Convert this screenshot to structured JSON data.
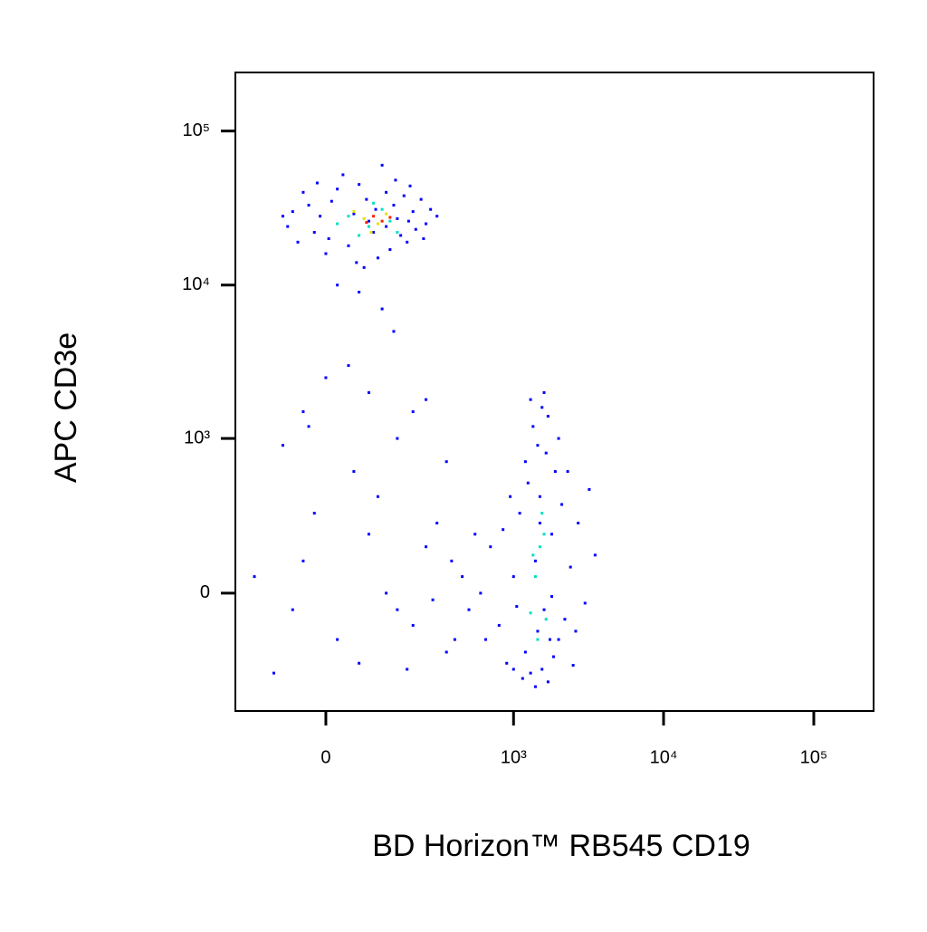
{
  "chart_data": {
    "type": "scatter",
    "x_label": "BD Horizon™ RB545 CD19",
    "y_label": "APC CD3e",
    "x_scale": "biexponential",
    "y_scale": "biexponential",
    "xlim": [
      -212,
      250000
    ],
    "ylim": [
      -565,
      240000
    ],
    "xticks": [
      0,
      {
        "value": 1000,
        "label": "10³"
      },
      {
        "value": 10000,
        "label": "10⁴"
      },
      {
        "value": 100000,
        "label": "10⁵"
      }
    ],
    "yticks": [
      0,
      {
        "value": 1000,
        "label": "10³"
      },
      {
        "value": 10000,
        "label": "10⁴"
      },
      {
        "value": 100000,
        "label": "10⁵"
      }
    ],
    "series": [
      {
        "color": "#0000ff",
        "x": [
          -60,
          -20,
          10,
          40,
          80,
          120,
          160,
          200,
          250,
          -40,
          0,
          60,
          100,
          140,
          180,
          230,
          -70,
          -10,
          30,
          70,
          110,
          150,
          190,
          270,
          -50,
          20,
          90,
          130,
          170,
          210,
          -30,
          50,
          120,
          300,
          -80,
          5,
          75,
          145,
          240,
          -15,
          55,
          95,
          185,
          60,
          110,
          20,
          140,
          40,
          80,
          -40,
          600,
          800,
          1000,
          1200,
          1400,
          1600,
          1800,
          2000,
          2400,
          3000,
          700,
          900,
          1100,
          1300,
          1500,
          1700,
          1900,
          2200,
          2700,
          3500,
          650,
          850,
          1050,
          1250,
          1450,
          1650,
          1850,
          2100,
          2500,
          1350,
          1550,
          1450,
          1700,
          1200,
          2000,
          1600,
          1300,
          1400,
          1550,
          1150,
          1750,
          950,
          2300,
          500,
          550,
          1000,
          1500,
          1800,
          2600,
          3200,
          -40,
          20,
          80,
          150,
          250,
          350,
          450,
          -100,
          -20,
          60,
          120,
          200,
          300,
          400,
          -60,
          180,
          380,
          280,
          -150,
          100,
          50,
          200,
          -80,
          0,
          250,
          350,
          150,
          -30
        ],
        "y": [
          30000,
          22000,
          35000,
          18000,
          26000,
          40000,
          21000,
          30000,
          25000,
          40000,
          16000,
          45000,
          15000,
          33000,
          19000,
          36000,
          24000,
          28000,
          52000,
          13000,
          60000,
          27000,
          44000,
          31000,
          19000,
          42000,
          22000,
          17000,
          38000,
          23000,
          33000,
          29000,
          24000,
          28000,
          28000,
          20000,
          36000,
          48000,
          20000,
          46000,
          14000,
          31000,
          26000,
          9000,
          7000,
          10000,
          5000,
          3000,
          2000,
          1500,
          0,
          -100,
          50,
          -200,
          100,
          -50,
          200,
          -150,
          80,
          -30,
          150,
          -250,
          300,
          -300,
          400,
          -350,
          600,
          -80,
          250,
          120,
          -150,
          220,
          -40,
          500,
          -120,
          800,
          -220,
          350,
          -260,
          1200,
          1600,
          900,
          1400,
          700,
          1000,
          2000,
          1800,
          -380,
          -280,
          -330,
          -150,
          400,
          600,
          -50,
          200,
          -280,
          250,
          -10,
          -120,
          450,
          100,
          -150,
          200,
          -50,
          150,
          -200,
          50,
          -300,
          300,
          -250,
          0,
          -100,
          250,
          -150,
          -50,
          -280,
          100,
          -20,
          50,
          400,
          600,
          1500,
          900,
          2500,
          1800,
          700,
          1000,
          1200
        ]
      },
      {
        "color": "#00e0c0",
        "x": [
          40,
          80,
          110,
          60,
          130,
          20,
          90,
          150,
          1400,
          1500,
          1300,
          1600,
          1450,
          1550,
          1350,
          1650
        ],
        "y": [
          28000,
          24000,
          31000,
          21000,
          26000,
          25000,
          34000,
          22000,
          50,
          150,
          -60,
          200,
          -150,
          300,
          120,
          -80
        ]
      },
      {
        "color": "#e8e000",
        "x": [
          70,
          100,
          50,
          120,
          85
        ],
        "y": [
          27000,
          25000,
          30000,
          29000,
          22000
        ]
      },
      {
        "color": "#ff2000",
        "x": [
          90,
          110,
          75,
          130
        ],
        "y": [
          28000,
          26000,
          25500,
          27500
        ]
      }
    ]
  }
}
